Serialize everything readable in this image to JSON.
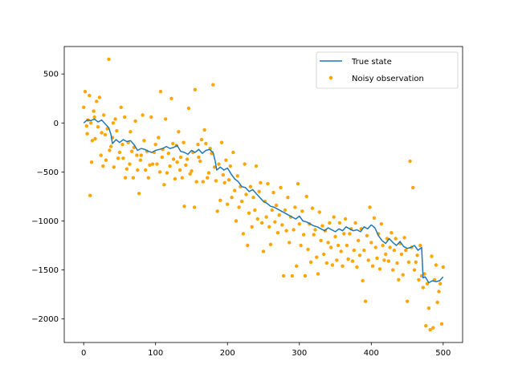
{
  "chart_data": {
    "type": "line+scatter",
    "title": "",
    "xlabel": "",
    "ylabel": "",
    "xlim": [
      -27,
      527
    ],
    "ylim": [
      -2240,
      780
    ],
    "x_ticks": [
      0,
      100,
      200,
      300,
      400,
      500
    ],
    "x_tick_labels": [
      "0",
      "100",
      "200",
      "300",
      "400",
      "500"
    ],
    "y_ticks": [
      500,
      0,
      -500,
      -1000,
      -1500,
      -2000
    ],
    "y_tick_labels": [
      "500",
      "0",
      "−500",
      "−1000",
      "−1500",
      "−2000"
    ],
    "grid": false,
    "legend": {
      "placement": "upper right",
      "entries": [
        "True state",
        "Noisy observation"
      ]
    },
    "colors": {
      "true_state": "#1f77b4",
      "observation": "#ffa500"
    },
    "series": [
      {
        "name": "True state",
        "kind": "line",
        "x": [
          0,
          5,
          10,
          15,
          20,
          25,
          30,
          35,
          38,
          40,
          45,
          50,
          55,
          60,
          65,
          70,
          75,
          80,
          85,
          90,
          95,
          100,
          105,
          110,
          115,
          120,
          125,
          130,
          135,
          140,
          145,
          150,
          155,
          160,
          165,
          170,
          175,
          180,
          183,
          185,
          190,
          195,
          200,
          205,
          210,
          215,
          220,
          225,
          230,
          235,
          240,
          245,
          250,
          255,
          260,
          265,
          270,
          275,
          280,
          285,
          290,
          295,
          300,
          305,
          310,
          315,
          320,
          325,
          330,
          335,
          340,
          345,
          350,
          355,
          360,
          365,
          370,
          375,
          380,
          385,
          390,
          395,
          400,
          405,
          410,
          415,
          420,
          425,
          430,
          435,
          440,
          445,
          450,
          455,
          460,
          465,
          470,
          472,
          475,
          480,
          485,
          490,
          495,
          500
        ],
        "y": [
          0,
          30,
          25,
          40,
          10,
          30,
          -10,
          -50,
          -120,
          -210,
          -170,
          -200,
          -170,
          -190,
          -180,
          -220,
          -280,
          -260,
          -270,
          -290,
          -300,
          -280,
          -270,
          -260,
          -240,
          -260,
          -250,
          -230,
          -290,
          -300,
          -320,
          -280,
          -300,
          -270,
          -310,
          -280,
          -270,
          -300,
          -390,
          -480,
          -450,
          -480,
          -460,
          -520,
          -570,
          -600,
          -650,
          -660,
          -700,
          -680,
          -720,
          -760,
          -800,
          -820,
          -850,
          -860,
          -880,
          -900,
          -920,
          -940,
          -960,
          -980,
          -950,
          -1000,
          -1010,
          -1030,
          -1050,
          -1060,
          -1080,
          -1100,
          -1070,
          -1090,
          -1110,
          -1080,
          -1100,
          -1060,
          -1080,
          -1100,
          -1090,
          -1110,
          -1060,
          -1080,
          -1040,
          -1070,
          -1150,
          -1200,
          -1230,
          -1180,
          -1220,
          -1250,
          -1210,
          -1260,
          -1280,
          -1270,
          -1250,
          -1300,
          -1270,
          -1580,
          -1570,
          -1630,
          -1610,
          -1620,
          -1610,
          -1570
        ]
      },
      {
        "name": "Noisy observation",
        "kind": "scatter",
        "points": [
          [
            0,
            160
          ],
          [
            2,
            320
          ],
          [
            4,
            -30
          ],
          [
            5,
            -110
          ],
          [
            6,
            30
          ],
          [
            8,
            280
          ],
          [
            9,
            -740
          ],
          [
            10,
            0
          ],
          [
            11,
            -400
          ],
          [
            12,
            -180
          ],
          [
            14,
            120
          ],
          [
            15,
            60
          ],
          [
            16,
            -160
          ],
          [
            18,
            220
          ],
          [
            20,
            -40
          ],
          [
            22,
            260
          ],
          [
            24,
            -330
          ],
          [
            25,
            -100
          ],
          [
            27,
            -440
          ],
          [
            28,
            80
          ],
          [
            30,
            -120
          ],
          [
            31,
            -380
          ],
          [
            33,
            -60
          ],
          [
            35,
            650
          ],
          [
            36,
            -280
          ],
          [
            38,
            -240
          ],
          [
            40,
            -150
          ],
          [
            41,
            0
          ],
          [
            42,
            -450
          ],
          [
            44,
            40
          ],
          [
            46,
            -80
          ],
          [
            48,
            -360
          ],
          [
            50,
            -300
          ],
          [
            52,
            160
          ],
          [
            54,
            -220
          ],
          [
            55,
            -360
          ],
          [
            57,
            60
          ],
          [
            58,
            -560
          ],
          [
            60,
            -470
          ],
          [
            62,
            -200
          ],
          [
            64,
            -420
          ],
          [
            65,
            -90
          ],
          [
            67,
            -290
          ],
          [
            69,
            -560
          ],
          [
            70,
            -250
          ],
          [
            72,
            20
          ],
          [
            74,
            -330
          ],
          [
            75,
            -480
          ],
          [
            77,
            -720
          ],
          [
            79,
            -380
          ],
          [
            80,
            -330
          ],
          [
            82,
            80
          ],
          [
            84,
            -180
          ],
          [
            86,
            -480
          ],
          [
            88,
            -290
          ],
          [
            90,
            -560
          ],
          [
            92,
            -430
          ],
          [
            94,
            60
          ],
          [
            96,
            -420
          ],
          [
            98,
            -300
          ],
          [
            100,
            -220
          ],
          [
            102,
            -420
          ],
          [
            104,
            -150
          ],
          [
            106,
            -500
          ],
          [
            107,
            320
          ],
          [
            109,
            -350
          ],
          [
            110,
            -270
          ],
          [
            112,
            -630
          ],
          [
            114,
            40
          ],
          [
            116,
            -510
          ],
          [
            118,
            -310
          ],
          [
            120,
            -440
          ],
          [
            122,
            250
          ],
          [
            124,
            -210
          ],
          [
            125,
            -370
          ],
          [
            127,
            -570
          ],
          [
            129,
            -230
          ],
          [
            130,
            -400
          ],
          [
            132,
            -90
          ],
          [
            134,
            -480
          ],
          [
            135,
            -350
          ],
          [
            137,
            -560
          ],
          [
            139,
            -200
          ],
          [
            140,
            -850
          ],
          [
            142,
            -430
          ],
          [
            144,
            -370
          ],
          [
            146,
            150
          ],
          [
            148,
            -520
          ],
          [
            150,
            -490
          ],
          [
            152,
            -300
          ],
          [
            154,
            -860
          ],
          [
            155,
            340
          ],
          [
            157,
            -600
          ],
          [
            159,
            -220
          ],
          [
            160,
            -350
          ],
          [
            162,
            -390
          ],
          [
            164,
            -170
          ],
          [
            166,
            -600
          ],
          [
            168,
            -70
          ],
          [
            170,
            -210
          ],
          [
            172,
            -560
          ],
          [
            174,
            -510
          ],
          [
            176,
            -260
          ],
          [
            178,
            -310
          ],
          [
            180,
            390
          ],
          [
            182,
            -450
          ],
          [
            184,
            -590
          ],
          [
            186,
            -900
          ],
          [
            188,
            -420
          ],
          [
            190,
            -790
          ],
          [
            192,
            -200
          ],
          [
            194,
            -530
          ],
          [
            196,
            -610
          ],
          [
            198,
            -380
          ],
          [
            200,
            -830
          ],
          [
            202,
            -580
          ],
          [
            204,
            -440
          ],
          [
            206,
            -760
          ],
          [
            208,
            -300
          ],
          [
            210,
            -690
          ],
          [
            212,
            -1000
          ],
          [
            214,
            -540
          ],
          [
            216,
            -860
          ],
          [
            218,
            -650
          ],
          [
            220,
            -800
          ],
          [
            222,
            -1130
          ],
          [
            224,
            -420
          ],
          [
            226,
            -730
          ],
          [
            228,
            -1250
          ],
          [
            230,
            -920
          ],
          [
            232,
            -650
          ],
          [
            234,
            -1060
          ],
          [
            236,
            -760
          ],
          [
            238,
            -890
          ],
          [
            240,
            -440
          ],
          [
            242,
            -980
          ],
          [
            244,
            -700
          ],
          [
            246,
            -610
          ],
          [
            248,
            -1020
          ],
          [
            250,
            -1310
          ],
          [
            252,
            -800
          ],
          [
            254,
            -960
          ],
          [
            256,
            -620
          ],
          [
            258,
            -1060
          ],
          [
            260,
            -1240
          ],
          [
            262,
            -890
          ],
          [
            264,
            -710
          ],
          [
            266,
            -1010
          ],
          [
            268,
            -840
          ],
          [
            270,
            -1120
          ],
          [
            272,
            -940
          ],
          [
            274,
            -660
          ],
          [
            276,
            -1040
          ],
          [
            278,
            -1560
          ],
          [
            280,
            -890
          ],
          [
            282,
            -1100
          ],
          [
            284,
            -760
          ],
          [
            286,
            -1220
          ],
          [
            288,
            -960
          ],
          [
            290,
            -1560
          ],
          [
            292,
            -1090
          ],
          [
            294,
            -860
          ],
          [
            296,
            -1460
          ],
          [
            298,
            -620
          ],
          [
            300,
            -1030
          ],
          [
            302,
            -1250
          ],
          [
            304,
            -900
          ],
          [
            306,
            -1140
          ],
          [
            308,
            -1560
          ],
          [
            310,
            -750
          ],
          [
            312,
            -1290
          ],
          [
            314,
            -1030
          ],
          [
            316,
            -1420
          ],
          [
            318,
            -870
          ],
          [
            320,
            -1140
          ],
          [
            322,
            -1090
          ],
          [
            324,
            -1370
          ],
          [
            326,
            -1540
          ],
          [
            328,
            -910
          ],
          [
            330,
            -1200
          ],
          [
            332,
            -1050
          ],
          [
            334,
            -1340
          ],
          [
            336,
            -1100
          ],
          [
            338,
            -1430
          ],
          [
            340,
            -1220
          ],
          [
            342,
            -1020
          ],
          [
            344,
            -1270
          ],
          [
            346,
            -1450
          ],
          [
            348,
            -960
          ],
          [
            350,
            -1160
          ],
          [
            352,
            -1400
          ],
          [
            354,
            -1250
          ],
          [
            356,
            -1020
          ],
          [
            358,
            -1310
          ],
          [
            360,
            -1460
          ],
          [
            362,
            -1130
          ],
          [
            364,
            -980
          ],
          [
            366,
            -1250
          ],
          [
            368,
            -1390
          ],
          [
            370,
            -1130
          ],
          [
            372,
            -1080
          ],
          [
            374,
            -1410
          ],
          [
            376,
            -1300
          ],
          [
            378,
            -1020
          ],
          [
            380,
            -1470
          ],
          [
            382,
            -1200
          ],
          [
            384,
            -1350
          ],
          [
            386,
            -1080
          ],
          [
            388,
            -1610
          ],
          [
            390,
            -1300
          ],
          [
            392,
            -1820
          ],
          [
            394,
            -1150
          ],
          [
            396,
            -1400
          ],
          [
            398,
            -860
          ],
          [
            400,
            -1220
          ],
          [
            402,
            -1460
          ],
          [
            404,
            -970
          ],
          [
            406,
            -1270
          ],
          [
            408,
            -1380
          ],
          [
            410,
            -1130
          ],
          [
            412,
            -1490
          ],
          [
            414,
            -1030
          ],
          [
            416,
            -1250
          ],
          [
            418,
            -1400
          ],
          [
            420,
            -1340
          ],
          [
            422,
            -1180
          ],
          [
            424,
            -1410
          ],
          [
            426,
            -1270
          ],
          [
            428,
            -1120
          ],
          [
            430,
            -1500
          ],
          [
            432,
            -1300
          ],
          [
            434,
            -1180
          ],
          [
            436,
            -1430
          ],
          [
            438,
            -1600
          ],
          [
            440,
            -1230
          ],
          [
            442,
            -1340
          ],
          [
            444,
            -1550
          ],
          [
            446,
            -1170
          ],
          [
            448,
            -1300
          ],
          [
            450,
            -1820
          ],
          [
            452,
            -1420
          ],
          [
            454,
            -390
          ],
          [
            456,
            -1270
          ],
          [
            458,
            -660
          ],
          [
            460,
            -1500
          ],
          [
            462,
            -1420
          ],
          [
            464,
            -1350
          ],
          [
            466,
            -1600
          ],
          [
            468,
            -1250
          ],
          [
            470,
            -1560
          ],
          [
            472,
            -1680
          ],
          [
            474,
            -1540
          ],
          [
            476,
            -2070
          ],
          [
            478,
            -1640
          ],
          [
            480,
            -1890
          ],
          [
            482,
            -2110
          ],
          [
            484,
            -1360
          ],
          [
            486,
            -2090
          ],
          [
            488,
            -1600
          ],
          [
            490,
            -1450
          ],
          [
            492,
            -1830
          ],
          [
            494,
            -1720
          ],
          [
            496,
            -1640
          ],
          [
            498,
            -2050
          ],
          [
            500,
            -1470
          ]
        ]
      }
    ]
  }
}
